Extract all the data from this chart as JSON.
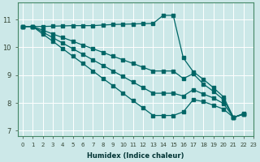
{
  "xlabel": "Humidex (Indice chaleur)",
  "bg_color": "#cce8e8",
  "grid_color": "#ffffff",
  "line_color": "#006666",
  "xlim": [
    -0.5,
    23
  ],
  "ylim": [
    6.8,
    11.6
  ],
  "yticks": [
    7,
    8,
    9,
    10,
    11
  ],
  "xticks": [
    0,
    1,
    2,
    3,
    4,
    5,
    6,
    7,
    8,
    9,
    10,
    11,
    12,
    13,
    14,
    15,
    16,
    17,
    18,
    19,
    20,
    21,
    22,
    23
  ],
  "line1_x": [
    0,
    1,
    2,
    3,
    4,
    5,
    6,
    7,
    8,
    9,
    10,
    11,
    12,
    13,
    14,
    15,
    16,
    17,
    18,
    19,
    20,
    21,
    22
  ],
  "line1_y": [
    10.75,
    10.75,
    10.75,
    10.76,
    10.77,
    10.78,
    10.78,
    10.78,
    10.8,
    10.82,
    10.83,
    10.84,
    10.85,
    10.86,
    11.15,
    11.15,
    9.62,
    9.12,
    8.85,
    8.55,
    8.22,
    7.48,
    7.6
  ],
  "line2_x": [
    0,
    1,
    2,
    3,
    4,
    5,
    6,
    7,
    8,
    9,
    10,
    11,
    12,
    13,
    14,
    15,
    16,
    17,
    18,
    19,
    20,
    21,
    22
  ],
  "line2_y": [
    10.75,
    10.75,
    10.55,
    10.35,
    10.15,
    9.95,
    9.75,
    9.55,
    9.35,
    9.15,
    8.95,
    8.75,
    8.55,
    8.35,
    8.35,
    8.35,
    8.25,
    8.48,
    8.32,
    8.18,
    7.98,
    7.48,
    7.6
  ],
  "line3_x": [
    0,
    1,
    2,
    3,
    4,
    5,
    6,
    7,
    8,
    9,
    10,
    11,
    12,
    13,
    14,
    15,
    16,
    17,
    18,
    19,
    20,
    21,
    22
  ],
  "line3_y": [
    10.75,
    10.75,
    10.48,
    10.22,
    9.95,
    9.68,
    9.42,
    9.15,
    8.88,
    8.62,
    8.35,
    8.08,
    7.82,
    7.55,
    7.55,
    7.55,
    7.68,
    8.12,
    8.05,
    7.92,
    7.78,
    7.48,
    7.62
  ],
  "line4_x": [
    0,
    1,
    2,
    3,
    4,
    5,
    6,
    7,
    8,
    9,
    10,
    11,
    12,
    13,
    14,
    15,
    16,
    17,
    18,
    19,
    20,
    21,
    22
  ],
  "line4_y": [
    10.75,
    10.75,
    10.62,
    10.48,
    10.35,
    10.22,
    10.08,
    9.95,
    9.82,
    9.68,
    9.55,
    9.42,
    9.28,
    9.15,
    9.15,
    9.15,
    8.88,
    9.05,
    8.68,
    8.42,
    8.12,
    7.48,
    7.6
  ]
}
